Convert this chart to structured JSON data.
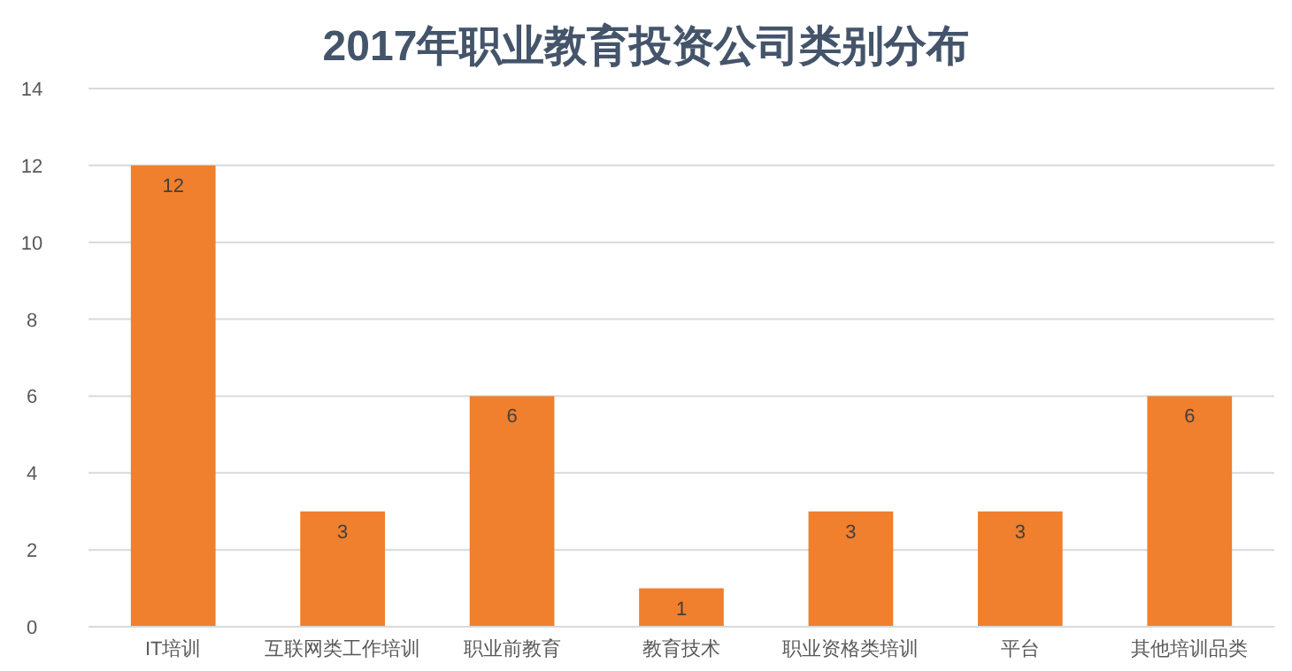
{
  "chart_data": {
    "type": "bar",
    "title": "2017年职业教育投资公司类别分布",
    "categories": [
      "IT培训",
      "互联网类工作培训",
      "职业前教育",
      "教育技术",
      "职业资格类培训",
      "平台",
      "其他培训品类"
    ],
    "values": [
      12,
      3,
      6,
      1,
      3,
      3,
      6
    ],
    "color": "#f07f2e",
    "ylim": [
      0,
      14
    ],
    "yticks": [
      0,
      2,
      4,
      6,
      8,
      10,
      12,
      14
    ],
    "grid": "y",
    "data_labels": true
  }
}
